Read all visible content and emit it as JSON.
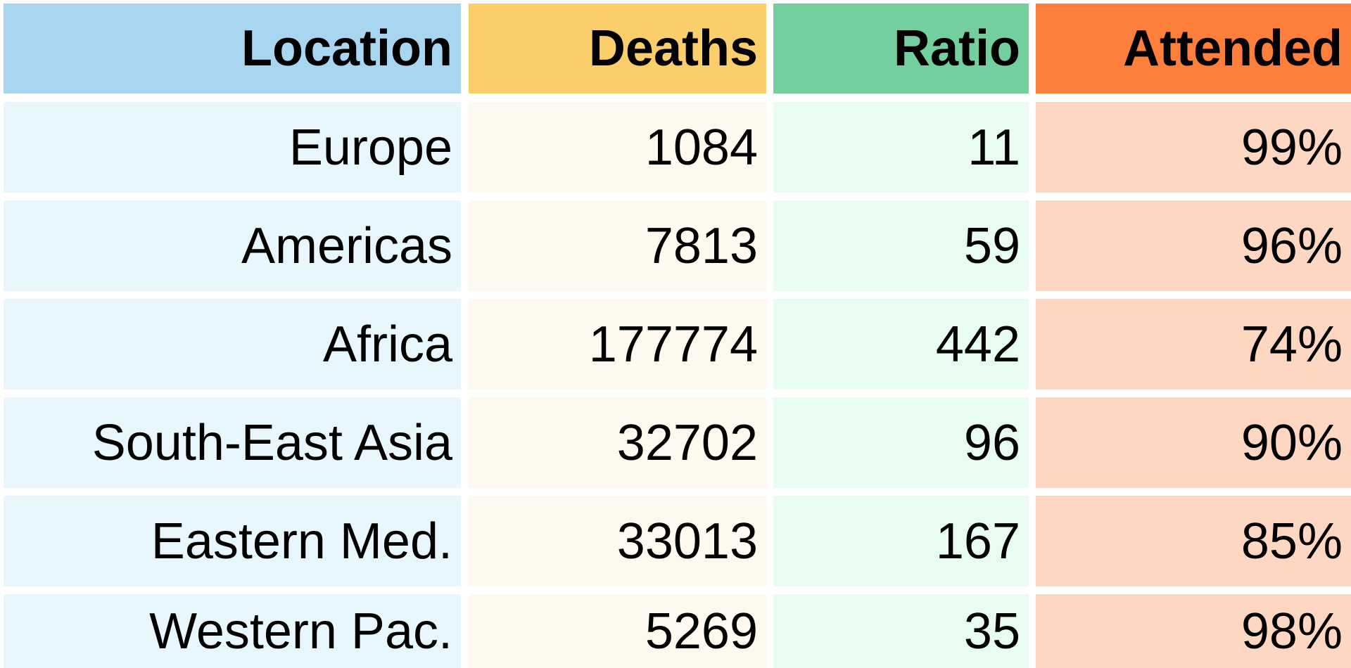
{
  "chart_data": {
    "type": "table",
    "columns": [
      {
        "label": "Location",
        "header_color": "#a8d5ef",
        "cell_color": "#e8f6fd"
      },
      {
        "label": "Deaths",
        "header_color": "#fbce6c",
        "cell_color": "#fef9ee"
      },
      {
        "label": "Ratio",
        "header_color": "#74cf9e",
        "cell_color": "#e9fcf1"
      },
      {
        "label": "Attended",
        "header_color": "#fd7f3b",
        "cell_color": "#fed7c3"
      }
    ],
    "rows": [
      [
        "Europe",
        "1084",
        "11",
        "99%"
      ],
      [
        "Americas",
        "7813",
        "59",
        "96%"
      ],
      [
        "Africa",
        "177774",
        "442",
        "74%"
      ],
      [
        "South-East Asia",
        "32702",
        "96",
        "90%"
      ],
      [
        "Eastern Med.",
        "33013",
        "167",
        "85%"
      ],
      [
        "Western Pac.",
        "5269",
        "35",
        "98%"
      ]
    ]
  }
}
